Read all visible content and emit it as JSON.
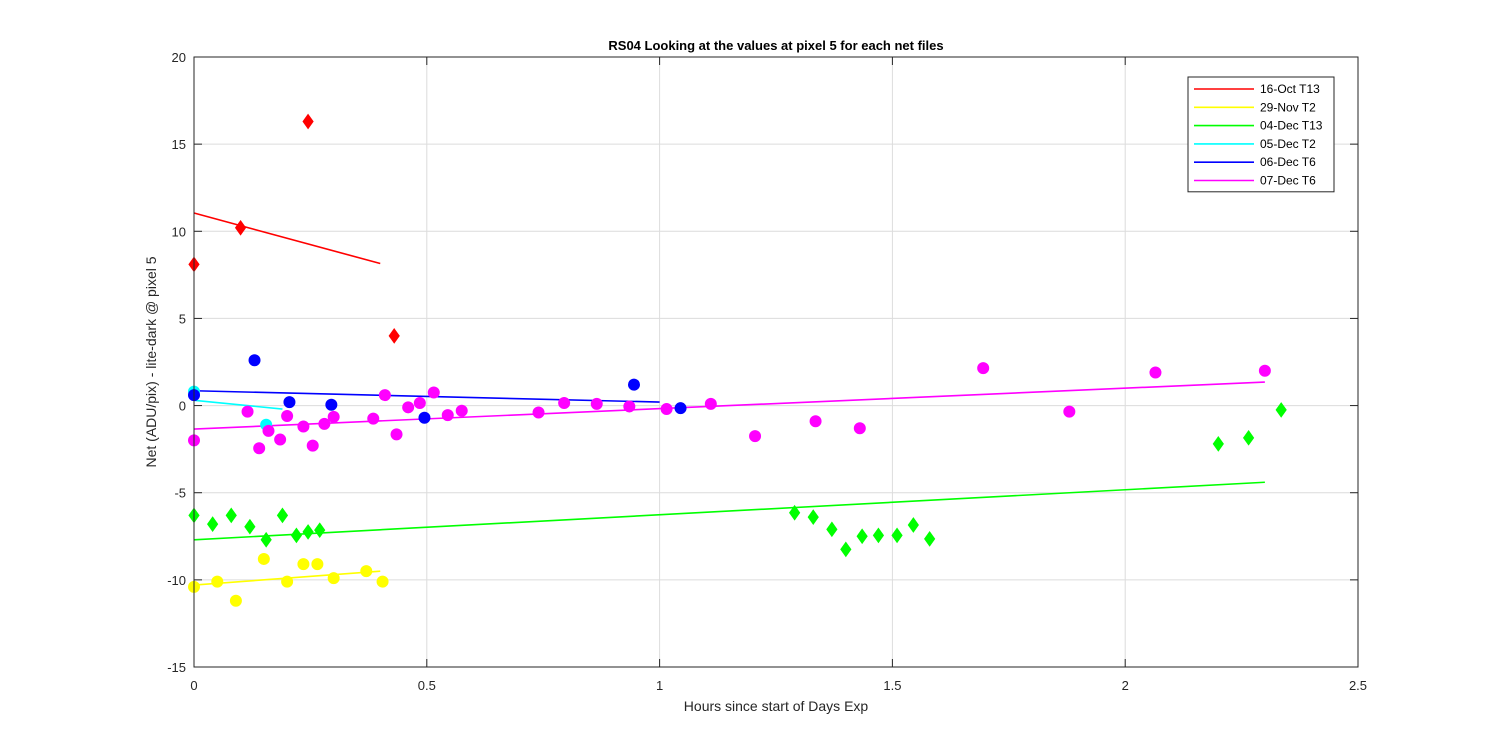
{
  "chart_data": {
    "type": "scatter",
    "title": "RS04  Looking at the values at pixel 5 for each net files",
    "xlabel": "Hours since start of Days Exp",
    "ylabel": "Net (ADU/pix) - lite-dark @ pixel 5",
    "xlim": [
      0,
      2.5
    ],
    "ylim": [
      -15,
      20
    ],
    "xticks": [
      "0",
      "0.5",
      "1",
      "1.5",
      "2",
      "2.5"
    ],
    "xtick_values": [
      0,
      0.5,
      1,
      1.5,
      2,
      2.5
    ],
    "yticks": [
      "-15",
      "-10",
      "-5",
      "0",
      "5",
      "10",
      "15",
      "20"
    ],
    "ytick_values": [
      -15,
      -10,
      -5,
      0,
      5,
      10,
      15,
      20
    ],
    "grid": true,
    "legend_position": "top-right",
    "series": [
      {
        "name": "16-Oct T13",
        "color": "#ff0000",
        "marker": "diamond",
        "points": [
          [
            0.0,
            8.1
          ],
          [
            0.1,
            10.2
          ],
          [
            0.245,
            16.3
          ],
          [
            0.43,
            4.0
          ]
        ],
        "fit": [
          [
            0.0,
            11.05
          ],
          [
            0.4,
            8.15
          ]
        ]
      },
      {
        "name": "29-Nov T2",
        "color": "#ffff00",
        "marker": "circle",
        "points": [
          [
            0.0,
            -10.4
          ],
          [
            0.05,
            -10.1
          ],
          [
            0.09,
            -11.2
          ],
          [
            0.15,
            -8.8
          ],
          [
            0.2,
            -10.1
          ],
          [
            0.235,
            -9.1
          ],
          [
            0.265,
            -9.1
          ],
          [
            0.3,
            -9.9
          ],
          [
            0.37,
            -9.5
          ],
          [
            0.405,
            -10.1
          ]
        ],
        "fit": [
          [
            0.0,
            -10.3
          ],
          [
            0.4,
            -9.5
          ]
        ]
      },
      {
        "name": "04-Dec T13",
        "color": "#00ff00",
        "marker": "diamond",
        "points": [
          [
            0.0,
            -6.3
          ],
          [
            0.04,
            -6.8
          ],
          [
            0.08,
            -6.3
          ],
          [
            0.12,
            -6.95
          ],
          [
            0.155,
            -7.7
          ],
          [
            0.19,
            -6.3
          ],
          [
            0.22,
            -7.45
          ],
          [
            0.245,
            -7.25
          ],
          [
            0.27,
            -7.15
          ],
          [
            1.29,
            -6.15
          ],
          [
            1.33,
            -6.4
          ],
          [
            1.37,
            -7.1
          ],
          [
            1.4,
            -8.25
          ],
          [
            1.435,
            -7.5
          ],
          [
            1.47,
            -7.45
          ],
          [
            1.51,
            -7.45
          ],
          [
            1.545,
            -6.85
          ],
          [
            1.58,
            -7.65
          ],
          [
            2.2,
            -2.2
          ],
          [
            2.265,
            -1.85
          ],
          [
            2.335,
            -0.25
          ]
        ],
        "fit": [
          [
            0.0,
            -7.7
          ],
          [
            2.3,
            -4.4
          ]
        ]
      },
      {
        "name": "05-Dec T2",
        "color": "#00ffff",
        "marker": "circle",
        "points": [
          [
            0.0,
            0.8
          ],
          [
            0.155,
            -1.1
          ]
        ],
        "fit": [
          [
            0.0,
            0.3
          ],
          [
            0.19,
            -0.2
          ]
        ]
      },
      {
        "name": "06-Dec T6",
        "color": "#0000ff",
        "marker": "circle",
        "points": [
          [
            0.0,
            0.6
          ],
          [
            0.13,
            2.6
          ],
          [
            0.205,
            0.2
          ],
          [
            0.295,
            0.05
          ],
          [
            0.495,
            -0.7
          ],
          [
            0.945,
            1.2
          ],
          [
            1.045,
            -0.15
          ]
        ],
        "fit": [
          [
            0.0,
            0.85
          ],
          [
            1.0,
            0.2
          ]
        ]
      },
      {
        "name": "07-Dec T6",
        "color": "#ff00ff",
        "marker": "circle",
        "points": [
          [
            0.0,
            -2.0
          ],
          [
            0.115,
            -0.35
          ],
          [
            0.14,
            -2.45
          ],
          [
            0.16,
            -1.45
          ],
          [
            0.185,
            -1.95
          ],
          [
            0.2,
            -0.6
          ],
          [
            0.235,
            -1.2
          ],
          [
            0.255,
            -2.3
          ],
          [
            0.28,
            -1.05
          ],
          [
            0.3,
            -0.65
          ],
          [
            0.385,
            -0.75
          ],
          [
            0.41,
            0.6
          ],
          [
            0.435,
            -1.65
          ],
          [
            0.46,
            -0.1
          ],
          [
            0.485,
            0.15
          ],
          [
            0.515,
            0.75
          ],
          [
            0.545,
            -0.55
          ],
          [
            0.575,
            -0.3
          ],
          [
            0.74,
            -0.4
          ],
          [
            0.795,
            0.15
          ],
          [
            0.865,
            0.1
          ],
          [
            0.935,
            -0.05
          ],
          [
            1.015,
            -0.2
          ],
          [
            1.11,
            0.1
          ],
          [
            1.205,
            -1.75
          ],
          [
            1.335,
            -0.9
          ],
          [
            1.43,
            -1.3
          ],
          [
            1.695,
            2.15
          ],
          [
            1.88,
            -0.35
          ],
          [
            2.065,
            1.9
          ],
          [
            2.3,
            2.0
          ]
        ],
        "fit": [
          [
            0.0,
            -1.35
          ],
          [
            2.3,
            1.35
          ]
        ]
      }
    ]
  }
}
